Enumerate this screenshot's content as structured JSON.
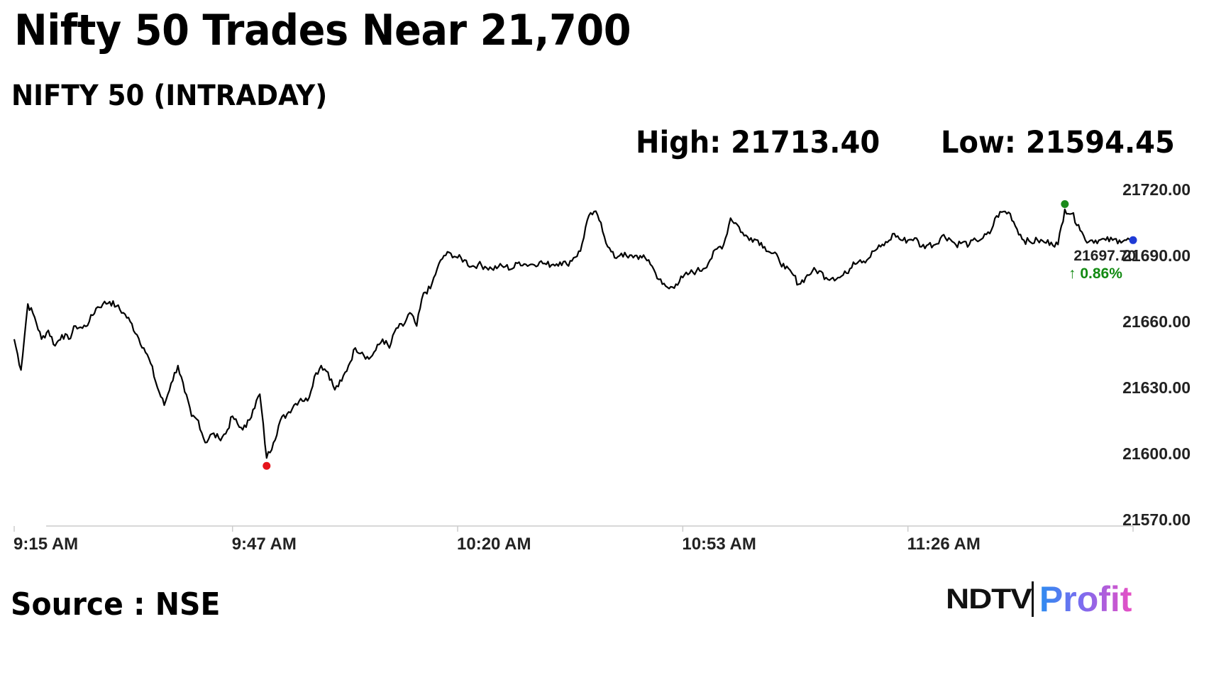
{
  "headline": "Nifty 50 Trades Near 21,700",
  "subtitle": "NIFTY 50 (INTRADAY)",
  "stats": {
    "high": "High: 21713.40",
    "low": "Low: 21594.45"
  },
  "source": "Source : NSE",
  "logo": {
    "brand": "NDTV",
    "product": "Profit"
  },
  "colors": {
    "line": "#000000",
    "high_marker": "#1a8a1a",
    "low_marker": "#e5141b",
    "last_marker": "#1f3bd6",
    "change_up": "#128a12",
    "axis": "#cccccc"
  },
  "chart_data": {
    "type": "line",
    "title": "NIFTY 50 (INTRADAY)",
    "xlabel": "",
    "ylabel": "",
    "y_ticks": [
      "21720.00",
      "21690.00",
      "21660.00",
      "21630.00",
      "21600.00",
      "21570.00"
    ],
    "y_tick_values": [
      21720,
      21690,
      21660,
      21630,
      21600,
      21570
    ],
    "ylim": [
      21570,
      21722
    ],
    "x_ticks": [
      "9:15 AM",
      "9:47 AM",
      "10:20 AM",
      "10:53 AM",
      "11:26 AM"
    ],
    "x_tick_minutes": [
      0,
      32,
      65,
      98,
      131
    ],
    "xlim_minutes": [
      0,
      164
    ],
    "grid": false,
    "last_value": "21697.70",
    "change": "↑ 0.86%",
    "high_value": 21713.4,
    "low_value": 21594.45,
    "high_at_minute": 154,
    "low_at_minute": 37,
    "series": [
      {
        "minutes": [
          0,
          1,
          2,
          3,
          4,
          5,
          6,
          7,
          8,
          9,
          10,
          11,
          12,
          13,
          14,
          15,
          16,
          17,
          18,
          19,
          20,
          21,
          22,
          23,
          24,
          25,
          26,
          27,
          28,
          29,
          30,
          31,
          32,
          33,
          34,
          35,
          36,
          37,
          38,
          39,
          40,
          41,
          42,
          43,
          44,
          45,
          46,
          47,
          48,
          49,
          50,
          51,
          52,
          53,
          54,
          55,
          56,
          57,
          58,
          59,
          60,
          61,
          62,
          63,
          64,
          65,
          66,
          67,
          68,
          69,
          70,
          71,
          72,
          73,
          74,
          75,
          76,
          77,
          78,
          79,
          80,
          81,
          82,
          83,
          84,
          85,
          86,
          87,
          88,
          89,
          90,
          91,
          92,
          93,
          94,
          95,
          96,
          97,
          98,
          99,
          100,
          101,
          102,
          103,
          104,
          105,
          106,
          107,
          108,
          109,
          110,
          111,
          112,
          113,
          114,
          115,
          116,
          117,
          118,
          119,
          120,
          121,
          122,
          123,
          124,
          125,
          126,
          127,
          128,
          129,
          130,
          131,
          132,
          133,
          134,
          135,
          136,
          137,
          138,
          139,
          140,
          141,
          142,
          143,
          144,
          145,
          146,
          147,
          148,
          149,
          150,
          151,
          152,
          153,
          154,
          155,
          156,
          157,
          158,
          159,
          160,
          161,
          162,
          163,
          164
        ],
        "values": [
          21652,
          21638,
          21668,
          21662,
          21652,
          21656,
          21649,
          21654,
          21652,
          21658,
          21657,
          21660,
          21666,
          21668,
          21669,
          21667,
          21664,
          21660,
          21654,
          21648,
          21641,
          21630,
          21622,
          21632,
          21640,
          21628,
          21617,
          21615,
          21605,
          21609,
          21607,
          21609,
          21617,
          21612,
          21612,
          21620,
          21627,
          21598,
          21605,
          21615,
          21618,
          21622,
          21625,
          21624,
          21635,
          21640,
          21637,
          21629,
          21633,
          21640,
          21648,
          21646,
          21643,
          21647,
          21652,
          21648,
          21657,
          21658,
          21664,
          21658,
          21673,
          21675,
          21684,
          21690,
          21691,
          21689,
          21688,
          21685,
          21686,
          21685,
          21684,
          21685,
          21685,
          21684,
          21687,
          21686,
          21686,
          21687,
          21686,
          21686,
          21687,
          21686,
          21689,
          21692,
          21706,
          21710,
          21705,
          21694,
          21689,
          21691,
          21689,
          21690,
          21689,
          21688,
          21682,
          21677,
          21675,
          21677,
          21680,
          21682,
          21683,
          21684,
          21688,
          21693,
          21695,
          21707,
          21704,
          21699,
          21698,
          21697,
          21694,
          21691,
          21689,
          21684,
          21682,
          21677,
          21680,
          21683,
          21683,
          21680,
          21680,
          21680,
          21682,
          21687,
          21688,
          21688,
          21692,
          21694,
          21696,
          21700,
          21697,
          21697,
          21698,
          21694,
          21695,
          21695,
          21699,
          21698,
          21695,
          21696,
          21695,
          21697,
          21698,
          21700,
          21708,
          21710,
          21709,
          21702,
          21697,
          21696,
          21697,
          21696,
          21696,
          21695,
          21711,
          21709,
          21704,
          21697,
          21697,
          21697,
          21697,
          21697,
          21697,
          21697,
          21697
        ]
      }
    ]
  }
}
